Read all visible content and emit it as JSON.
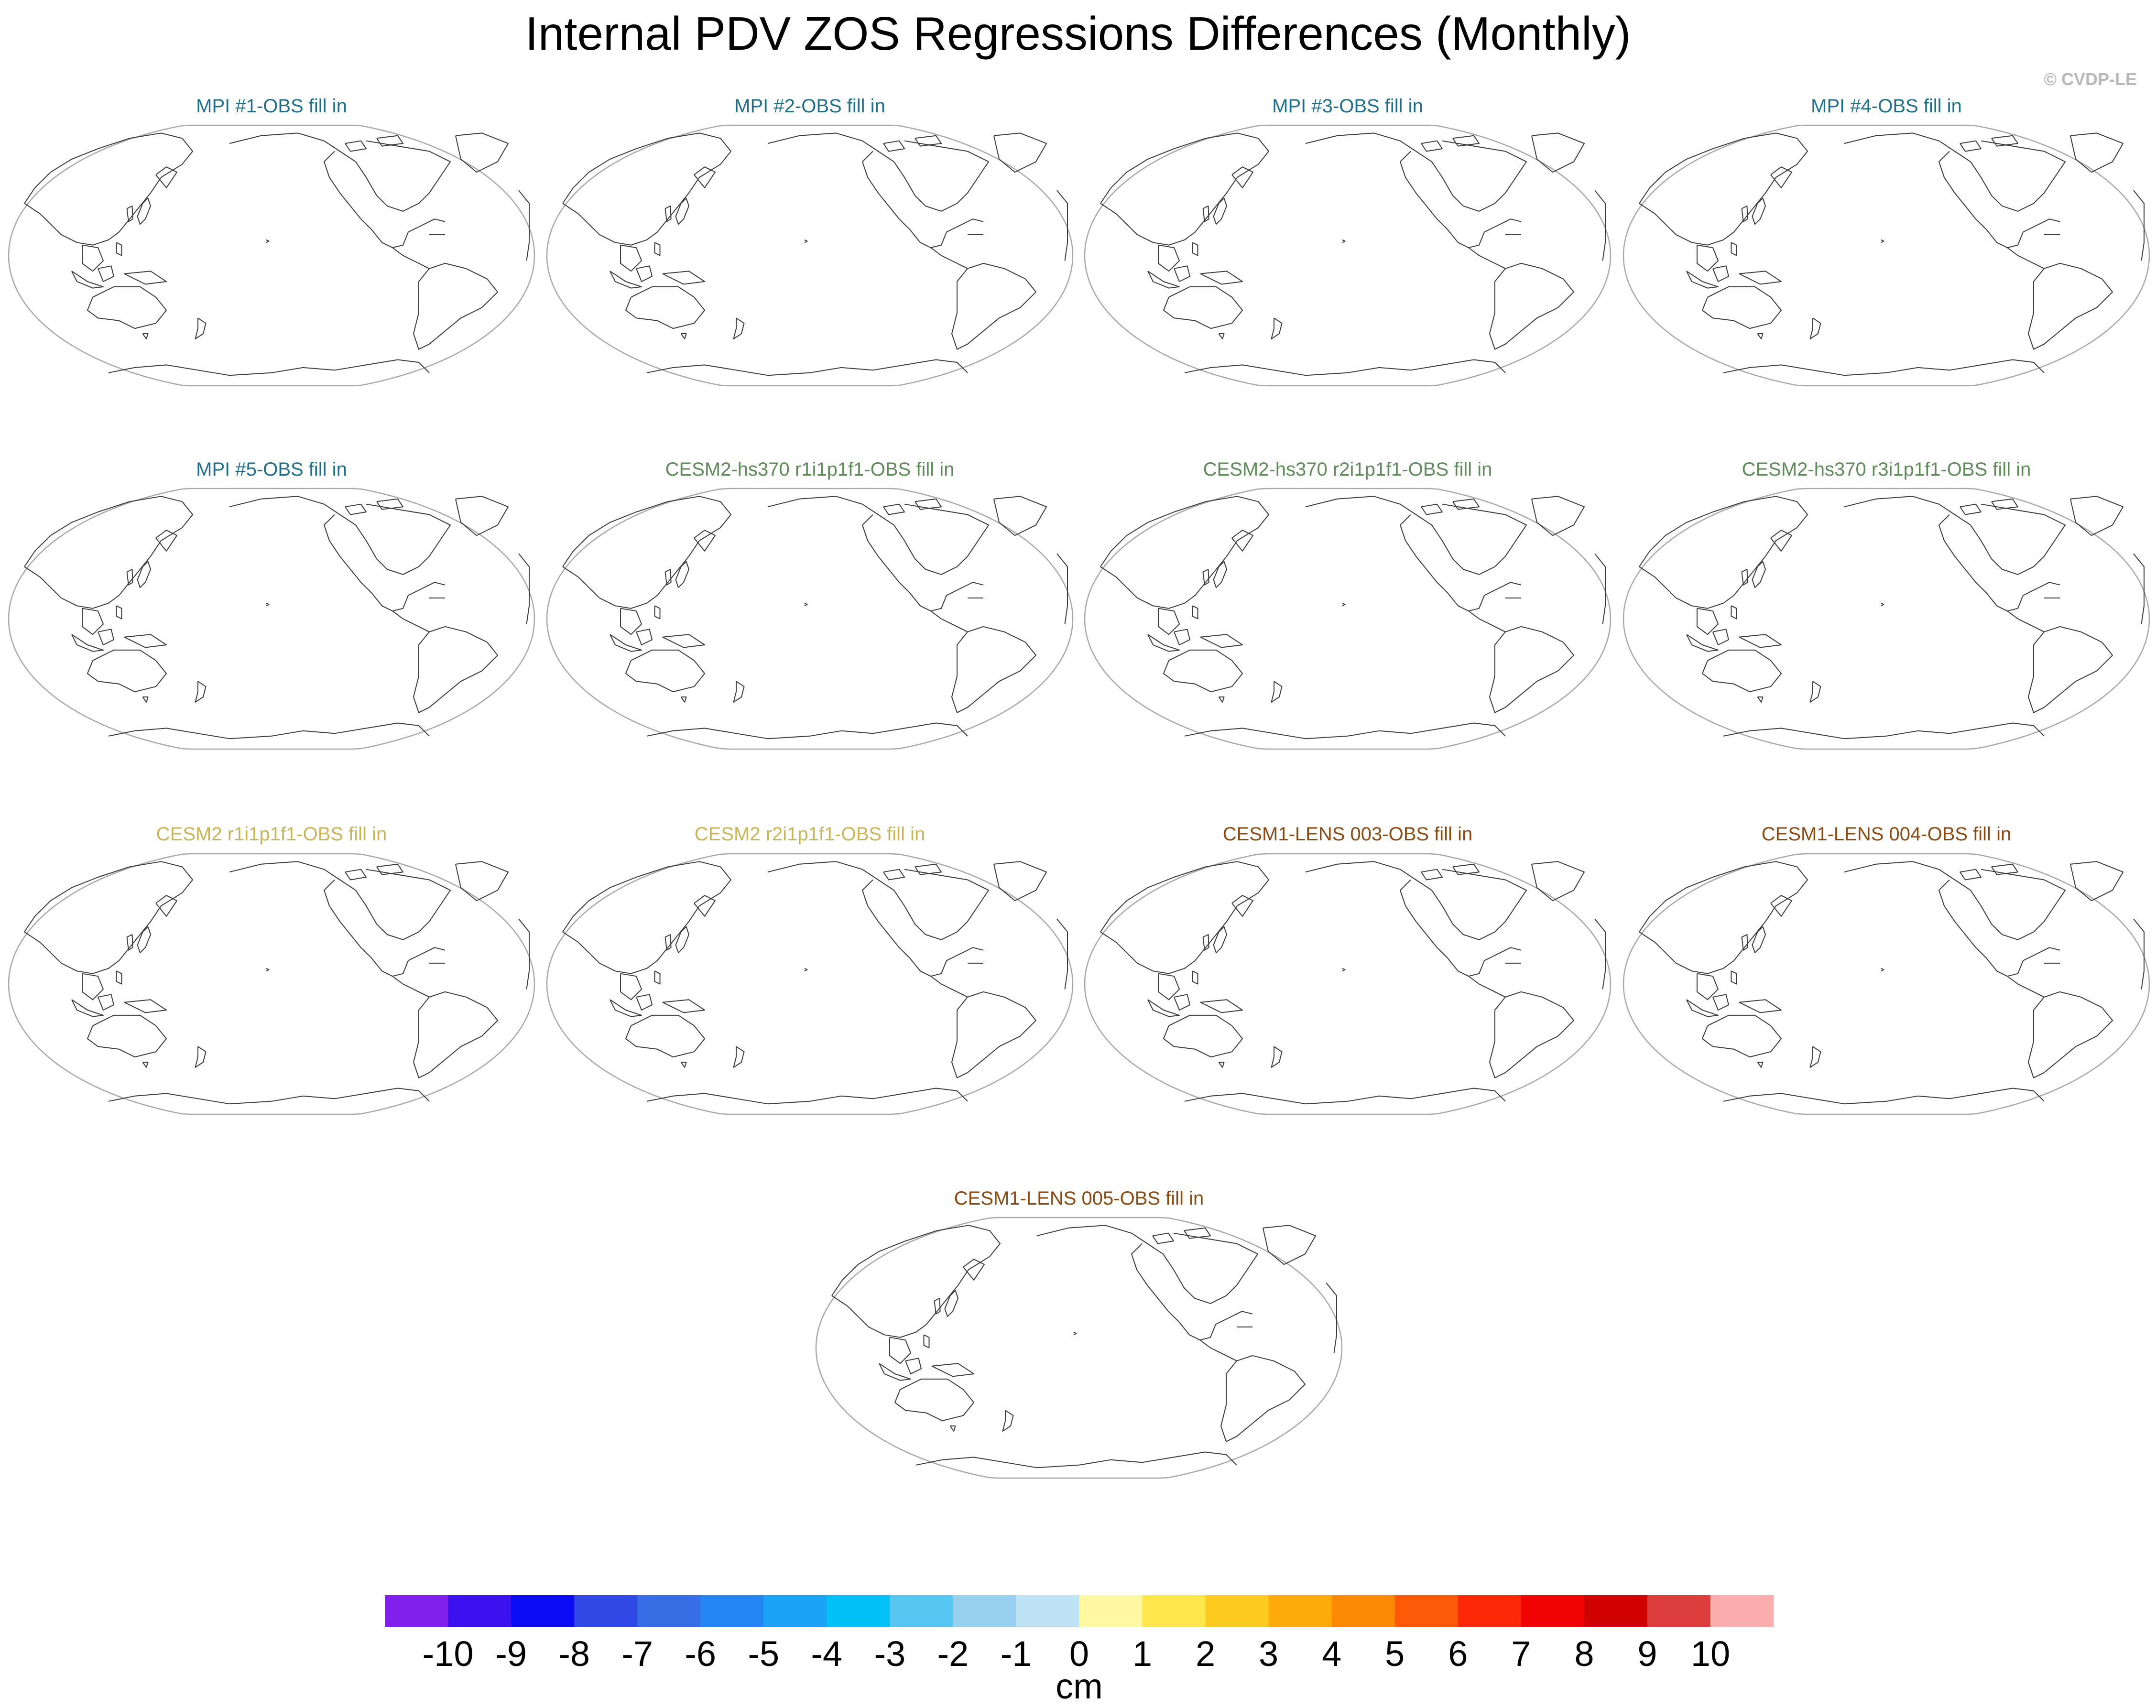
{
  "chart_data": {
    "type": "map-panel-grid",
    "title": "Internal PDV ZOS Regressions Differences (Monthly)",
    "credit": "© CVDP-LE",
    "projection": "Robinson, Pacific-centered (global coastline outlines)",
    "panels": [
      {
        "label": "MPI #1-OBS fill in",
        "color": "#1f6f8b"
      },
      {
        "label": "MPI #2-OBS fill in",
        "color": "#1f6f8b"
      },
      {
        "label": "MPI #3-OBS fill in",
        "color": "#1f6f8b"
      },
      {
        "label": "MPI #4-OBS fill in",
        "color": "#1f6f8b"
      },
      {
        "label": "MPI #5-OBS fill in",
        "color": "#1f6f8b"
      },
      {
        "label": "CESM2-hs370 r1i1p1f1-OBS fill in",
        "color": "#5f8a5a"
      },
      {
        "label": "CESM2-hs370 r2i1p1f1-OBS fill in",
        "color": "#5f8a5a"
      },
      {
        "label": "CESM2-hs370 r3i1p1f1-OBS fill in",
        "color": "#5f8a5a"
      },
      {
        "label": "CESM2 r1i1p1f1-OBS fill in",
        "color": "#c9b458"
      },
      {
        "label": "CESM2 r2i1p1f1-OBS fill in",
        "color": "#c9b458"
      },
      {
        "label": "CESM1-LENS 003-OBS fill in",
        "color": "#8b4a12"
      },
      {
        "label": "CESM1-LENS 004-OBS fill in",
        "color": "#8b4a12"
      },
      {
        "label": "CESM1-LENS 005-OBS fill in",
        "color": "#8b4a12"
      }
    ],
    "colorbar": {
      "label": "cm",
      "ticks": [
        "-10",
        "-9",
        "-8",
        "-7",
        "-6",
        "-5",
        "-4",
        "-3",
        "-2",
        "-1",
        "0",
        "1",
        "2",
        "3",
        "4",
        "5",
        "6",
        "7",
        "8",
        "9",
        "10"
      ],
      "colors": [
        "#8120ec",
        "#3b11f0",
        "#0b0cf6",
        "#2f48e6",
        "#376ee6",
        "#2485f3",
        "#1ba4f6",
        "#00c0f6",
        "#56c7f2",
        "#97d0ee",
        "#bde3f5",
        "#fff8a3",
        "#fde74a",
        "#fdcb1f",
        "#fdab0b",
        "#fd8a07",
        "#fd5a07",
        "#fd2906",
        "#f20303",
        "#cf0101",
        "#dc3d3d",
        "#fcaeae"
      ]
    }
  }
}
